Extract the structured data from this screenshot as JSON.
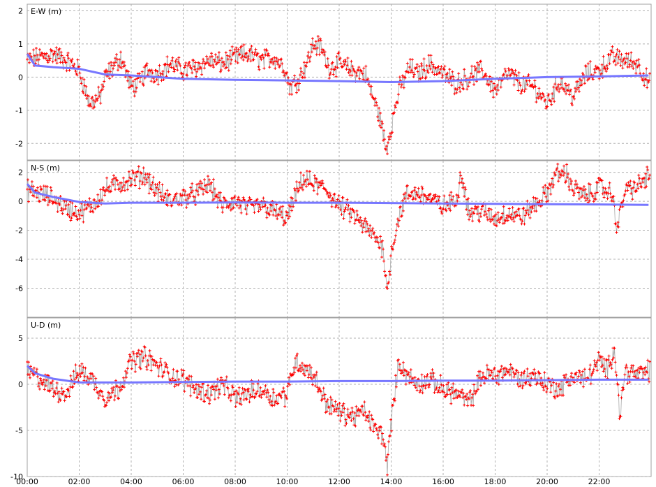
{
  "chart_data": [
    {
      "type": "scatter",
      "title": "E-W (m)",
      "ylim": [
        -2.5,
        2.2
      ],
      "yticks": [
        "2",
        "1",
        "0",
        "-1",
        "-2"
      ],
      "yticks_values": [
        2,
        1,
        0,
        -1,
        -2
      ],
      "x_range_hours": [
        0,
        24
      ],
      "grid": true,
      "series": [
        {
          "marker": "red-plus",
          "color": "#ff0000",
          "x": [
            0.0,
            0.5,
            1.0,
            1.5,
            2.0,
            2.2,
            2.4,
            2.6,
            2.8,
            3.0,
            3.3,
            3.6,
            4.0,
            4.3,
            4.6,
            5.0,
            5.5,
            6.0,
            6.5,
            7.0,
            7.5,
            8.0,
            8.5,
            9.0,
            9.5,
            9.9,
            10.1,
            10.4,
            10.8,
            11.0,
            11.3,
            11.6,
            12.0,
            12.5,
            13.0,
            13.3,
            13.6,
            13.8,
            14.0,
            14.3,
            14.7,
            15.0,
            15.5,
            16.0,
            16.5,
            17.0,
            17.5,
            18.0,
            18.5,
            19.0,
            19.5,
            20.0,
            20.5,
            21.0,
            21.5,
            22.0,
            22.5,
            23.0,
            23.5,
            23.9
          ],
          "y": [
            0.5,
            0.6,
            0.7,
            0.5,
            0.2,
            -0.3,
            -0.8,
            -0.7,
            -0.6,
            0.0,
            0.3,
            0.6,
            -0.3,
            -0.2,
            0.2,
            0.1,
            0.4,
            0.2,
            0.3,
            0.5,
            0.4,
            0.6,
            0.7,
            0.5,
            0.6,
            0.3,
            -0.3,
            -0.1,
            0.5,
            1.0,
            0.9,
            0.3,
            0.4,
            0.2,
            0.1,
            -0.6,
            -1.3,
            -2.2,
            -1.5,
            -0.4,
            0.3,
            0.1,
            0.4,
            0.1,
            -0.2,
            0.0,
            0.2,
            -0.4,
            0.1,
            -0.2,
            -0.3,
            -0.8,
            -0.1,
            -0.6,
            0.1,
            0.2,
            0.6,
            0.5,
            0.4,
            -0.2
          ]
        },
        {
          "line": "blue",
          "color": "#7777ff",
          "x": [
            0.0,
            0.3,
            1.0,
            2.0,
            3.0,
            4.0,
            5.0,
            6.0,
            8.0,
            10.0,
            12.0,
            14.0,
            16.0,
            18.0,
            20.0,
            22.0,
            23.9
          ],
          "y": [
            0.7,
            0.35,
            0.3,
            0.25,
            0.08,
            0.05,
            0.0,
            -0.05,
            -0.08,
            -0.1,
            -0.12,
            -0.15,
            -0.12,
            -0.05,
            0.0,
            0.02,
            0.05
          ]
        }
      ]
    },
    {
      "type": "scatter",
      "title": "N-S (m)",
      "ylim": [
        -8,
        2.8
      ],
      "yticks": [
        "2",
        "0",
        "-2",
        "-4",
        "-6"
      ],
      "yticks_values": [
        2,
        0,
        -2,
        -4,
        -6
      ],
      "x_range_hours": [
        0,
        24
      ],
      "grid": true,
      "series": [
        {
          "marker": "red-plus",
          "color": "#ff0000",
          "x": [
            0.0,
            0.5,
            1.0,
            1.5,
            2.0,
            2.5,
            3.0,
            3.5,
            4.0,
            4.5,
            5.0,
            5.5,
            6.0,
            6.5,
            7.0,
            7.5,
            8.0,
            8.5,
            9.0,
            9.5,
            10.0,
            10.3,
            10.6,
            11.0,
            11.5,
            12.0,
            12.5,
            13.0,
            13.4,
            13.7,
            13.85,
            14.0,
            14.3,
            14.6,
            15.0,
            15.5,
            16.0,
            16.5,
            16.7,
            17.0,
            17.5,
            18.0,
            18.5,
            19.0,
            19.5,
            20.0,
            20.3,
            20.7,
            21.0,
            21.5,
            22.0,
            22.5,
            22.7,
            23.0,
            23.5,
            23.9
          ],
          "y": [
            0.8,
            0.5,
            0.2,
            -0.5,
            -0.8,
            -0.3,
            0.8,
            1.2,
            1.5,
            1.8,
            0.7,
            0.0,
            0.3,
            0.5,
            1.2,
            -0.3,
            0.0,
            -0.5,
            -0.3,
            -0.7,
            -1.2,
            0.3,
            1.5,
            1.2,
            0.8,
            -0.3,
            -0.9,
            -1.8,
            -2.5,
            -3.2,
            -6.5,
            -3.5,
            -1.0,
            0.4,
            0.6,
            0.2,
            -0.4,
            0.1,
            2.0,
            -0.8,
            -0.7,
            -1.2,
            -0.8,
            -1.1,
            -0.3,
            0.5,
            1.8,
            2.0,
            0.9,
            0.3,
            1.0,
            0.5,
            -1.8,
            0.8,
            1.0,
            1.8
          ]
        },
        {
          "line": "blue",
          "color": "#7777ff",
          "x": [
            0.0,
            0.3,
            1.0,
            2.0,
            3.0,
            4.0,
            6.0,
            8.0,
            10.0,
            12.0,
            14.0,
            16.0,
            18.0,
            20.0,
            22.0,
            23.9
          ],
          "y": [
            1.2,
            0.6,
            0.3,
            -0.05,
            -0.15,
            -0.1,
            -0.1,
            -0.08,
            -0.1,
            -0.1,
            -0.12,
            -0.15,
            -0.18,
            -0.2,
            -0.22,
            -0.25
          ]
        }
      ]
    },
    {
      "type": "scatter",
      "title": "U-D (m)",
      "ylim": [
        -10,
        7.2
      ],
      "yticks": [
        "5",
        "0",
        "-5",
        "-10"
      ],
      "yticks_values": [
        5,
        0,
        -5,
        -10
      ],
      "xticks": [
        "00:00",
        "02:00",
        "04:00",
        "06:00",
        "08:00",
        "10:00",
        "12:00",
        "14:00",
        "16:00",
        "18:00",
        "20:00",
        "22:00"
      ],
      "xticks_values": [
        0,
        2,
        4,
        6,
        8,
        10,
        12,
        14,
        16,
        18,
        20,
        22
      ],
      "x_range_hours": [
        0,
        24
      ],
      "grid": true,
      "series": [
        {
          "marker": "red-plus",
          "color": "#ff0000",
          "x": [
            0.0,
            0.5,
            1.0,
            1.5,
            2.0,
            2.5,
            3.0,
            3.5,
            4.0,
            4.5,
            5.0,
            5.5,
            6.0,
            6.5,
            7.0,
            7.5,
            8.0,
            8.5,
            9.0,
            9.5,
            10.0,
            10.3,
            10.6,
            11.0,
            11.5,
            12.0,
            12.5,
            13.0,
            13.4,
            13.7,
            13.85,
            14.0,
            14.3,
            14.6,
            15.0,
            15.5,
            16.0,
            16.5,
            17.0,
            17.5,
            18.0,
            18.5,
            19.0,
            19.5,
            20.0,
            20.5,
            21.0,
            21.5,
            22.0,
            22.3,
            22.6,
            22.8,
            23.0,
            23.5,
            23.9
          ],
          "y": [
            1.5,
            0.5,
            -0.5,
            -1.0,
            1.5,
            0.5,
            -1.5,
            -0.5,
            2.5,
            3.0,
            2.0,
            1.0,
            0.5,
            -0.5,
            -1.0,
            0.0,
            -1.5,
            -1.0,
            -0.5,
            -1.5,
            -1.0,
            2.5,
            2.0,
            1.0,
            -2.0,
            -3.0,
            -3.5,
            -3.0,
            -5.0,
            -5.5,
            -9.0,
            -4.0,
            2.5,
            1.0,
            0.0,
            0.5,
            -0.5,
            -1.0,
            -2.0,
            1.0,
            1.0,
            1.5,
            0.5,
            1.0,
            0.0,
            -0.5,
            1.0,
            0.5,
            2.5,
            1.5,
            4.0,
            -3.5,
            1.5,
            1.0,
            1.5
          ]
        },
        {
          "line": "blue",
          "color": "#7777ff",
          "x": [
            0.0,
            0.3,
            1.0,
            2.0,
            4.0,
            6.0,
            8.0,
            10.0,
            12.0,
            14.0,
            16.0,
            18.0,
            20.0,
            22.0,
            23.9
          ],
          "y": [
            2.0,
            1.2,
            0.6,
            0.2,
            0.2,
            0.25,
            0.3,
            0.3,
            0.35,
            0.35,
            0.4,
            0.4,
            0.45,
            0.5,
            0.5
          ]
        }
      ]
    }
  ]
}
